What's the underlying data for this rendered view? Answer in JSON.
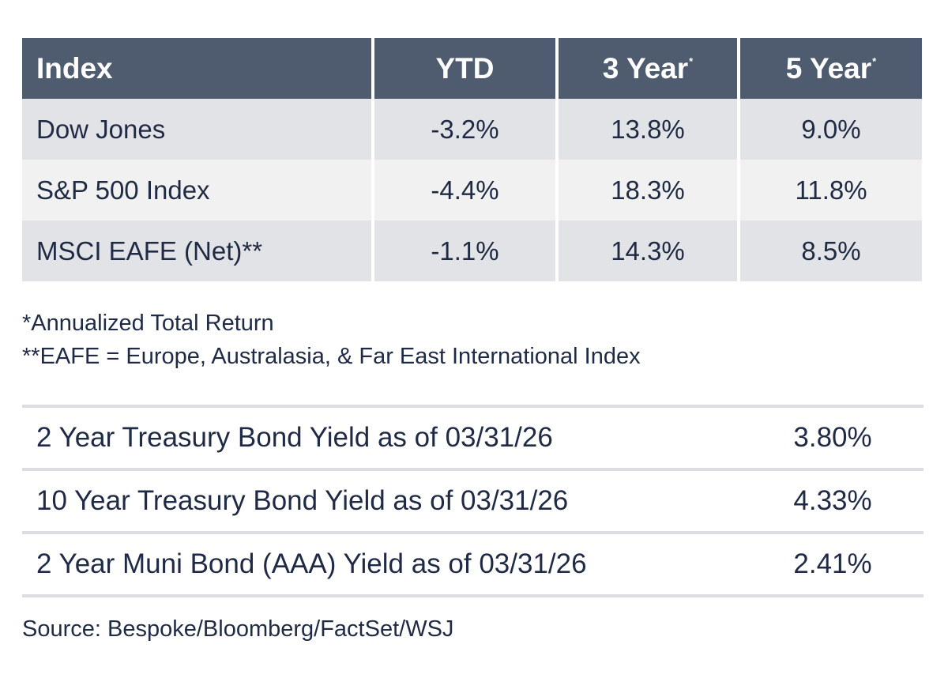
{
  "returns_table": {
    "headers": [
      {
        "label": "Index",
        "mark": ""
      },
      {
        "label": "YTD",
        "mark": ""
      },
      {
        "label": "3 Year",
        "mark": "*"
      },
      {
        "label": "5 Year",
        "mark": "*"
      }
    ],
    "rows": [
      {
        "name": "Dow Jones",
        "ytd": "-3.2%",
        "three_year": "13.8%",
        "five_year": "9.0%"
      },
      {
        "name": "S&P 500 Index",
        "ytd": "-4.4%",
        "three_year": "18.3%",
        "five_year": "11.8%"
      },
      {
        "name": "MSCI EAFE (Net)**",
        "ytd": "-1.1%",
        "three_year": "14.3%",
        "five_year": "8.5%"
      }
    ]
  },
  "footnotes": [
    "*Annualized Total Return",
    "**EAFE = Europe, Australasia, & Far East International Index"
  ],
  "yields": [
    {
      "label": "2 Year Treasury Bond Yield as of 03/31/26",
      "value": "3.80%"
    },
    {
      "label": "10 Year Treasury Bond Yield as of 03/31/26",
      "value": "4.33%"
    },
    {
      "label": "2 Year Muni Bond (AAA) Yield as of 03/31/26",
      "value": "2.41%"
    }
  ],
  "source": "Source: Bespoke/Bloomberg/FactSet/WSJ"
}
